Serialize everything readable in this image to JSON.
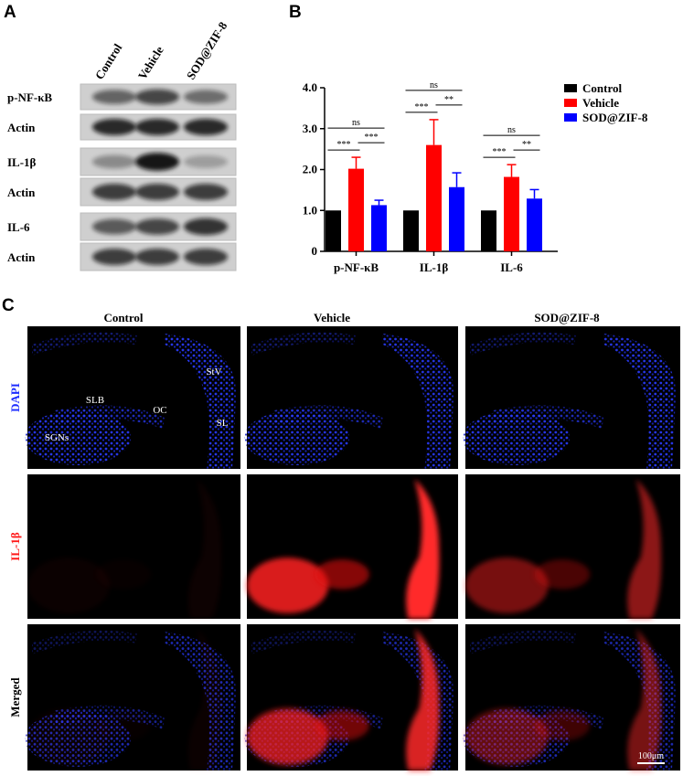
{
  "panel_labels": [
    "A",
    "B",
    "C"
  ],
  "blot": {
    "lanes": [
      "Control",
      "Vehicle",
      "SOD@ZIF-8"
    ],
    "rows": [
      "p-NF-κB",
      "Actin",
      "IL-1β",
      "Actin",
      "IL-6",
      "Actin"
    ]
  },
  "chart_data": {
    "type": "bar",
    "categories": [
      "p-NF-κB",
      "IL-1β",
      "IL-6"
    ],
    "series": [
      {
        "name": "Control",
        "color": "#000000",
        "values": [
          1,
          1,
          1
        ]
      },
      {
        "name": "Vehicle",
        "color": "#ff0000",
        "values": [
          2.02,
          2.6,
          1.82
        ],
        "errors": [
          0.28,
          0.62,
          0.3
        ]
      },
      {
        "name": "SOD@ZIF-8",
        "color": "#0000ff",
        "values": [
          1.13,
          1.57,
          1.29
        ],
        "errors": [
          0.12,
          0.35,
          0.22
        ]
      }
    ],
    "ylim": [
      0,
      4
    ],
    "yticks": [
      0,
      {
        "value": 1,
        "label": "1.0"
      },
      {
        "value": 2,
        "label": "2.0"
      },
      {
        "value": 3,
        "label": "3.0"
      },
      {
        "value": 4,
        "label": "4.0"
      }
    ],
    "significance": [
      [
        "ns",
        "***",
        "***"
      ],
      [
        "ns",
        "***",
        "**"
      ],
      [
        "ns",
        "***",
        "**"
      ]
    ],
    "legend": "right"
  },
  "microscopy": {
    "columns": [
      "Control",
      "Vehicle",
      "SOD@ZIF-8"
    ],
    "rows": [
      "DAPI",
      "IL-1β",
      "Merged"
    ],
    "regions": [
      "SGNs",
      "SLB",
      "OC",
      "StV",
      "SL"
    ],
    "scale_bar": "100μm"
  }
}
